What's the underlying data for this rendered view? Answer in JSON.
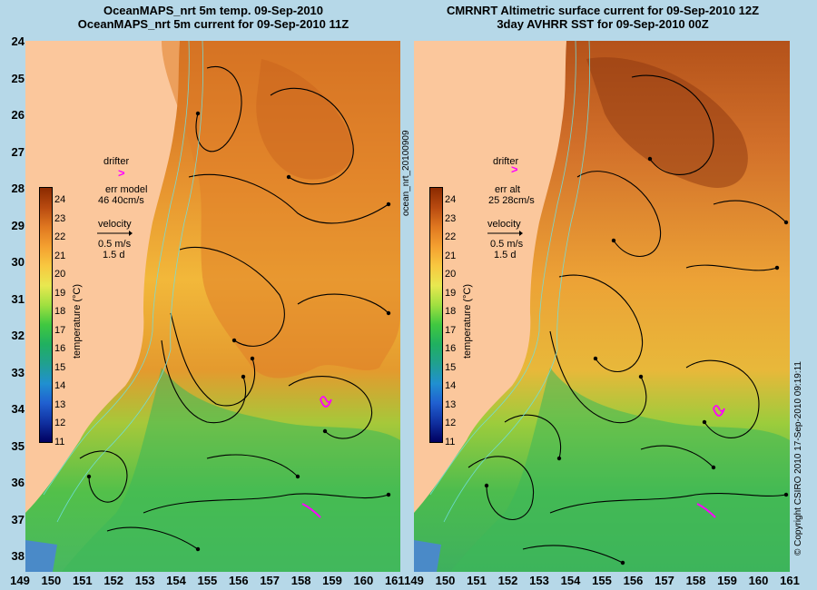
{
  "titles": {
    "left_line1": "OceanMAPS_nrt 5m temp. 09-Sep-2010",
    "left_line2": "OceanMAPS_nrt 5m current for 09-Sep-2010 11Z",
    "right_line1": "CMRNRT Altimetric surface current for 09-Sep-2010 12Z",
    "right_line2": "3day AVHRR SST for 09-Sep-2010 00Z"
  },
  "axes": {
    "lat_labels": [
      "24",
      "25",
      "26",
      "27",
      "28",
      "29",
      "30",
      "31",
      "32",
      "33",
      "34",
      "35",
      "36",
      "37",
      "38"
    ],
    "lon_labels": [
      "149",
      "150",
      "151",
      "152",
      "153",
      "154",
      "155",
      "156",
      "157",
      "158",
      "159",
      "160",
      "161"
    ]
  },
  "left_legend": {
    "drifter": "drifter",
    "drifter_symbol": ">",
    "err_label": "err model",
    "err_value": "46 40cm/s",
    "velocity": "velocity",
    "velocity_scale": "0.5 m/s",
    "velocity_time": "1.5 d"
  },
  "right_legend": {
    "drifter": "drifter",
    "drifter_symbol": ">",
    "err_label": "err alt",
    "err_value": "25 28cm/s",
    "velocity": "velocity",
    "velocity_scale": "0.5 m/s",
    "velocity_time": "1.5 d"
  },
  "colorbar": {
    "label": "temperature (°C)",
    "ticks": [
      "24",
      "23",
      "22",
      "21",
      "20",
      "19",
      "18",
      "17",
      "16",
      "15",
      "14",
      "13",
      "12",
      "11"
    ],
    "colors": [
      "#8b2a00",
      "#b84a10",
      "#e07820",
      "#f4a030",
      "#f8c840",
      "#e8e850",
      "#a0e040",
      "#40c840",
      "#20b060",
      "#20a090",
      "#2090d0",
      "#2060d0",
      "#1030a0",
      "#000060"
    ]
  },
  "side_labels": {
    "middle": "ocean_nrt_20100909",
    "copyright": "© Copyright CSIRO 2010   17-Sep-2010 09:19:11"
  },
  "colors": {
    "land": "#fbc79c",
    "warm": "#e08a2a",
    "hot": "#b0521a",
    "mid": "#f2c340",
    "cool": "#6ccc3a",
    "cold": "#2aa870",
    "background": "#b6d8e8",
    "drifter": "#ff00ff"
  }
}
